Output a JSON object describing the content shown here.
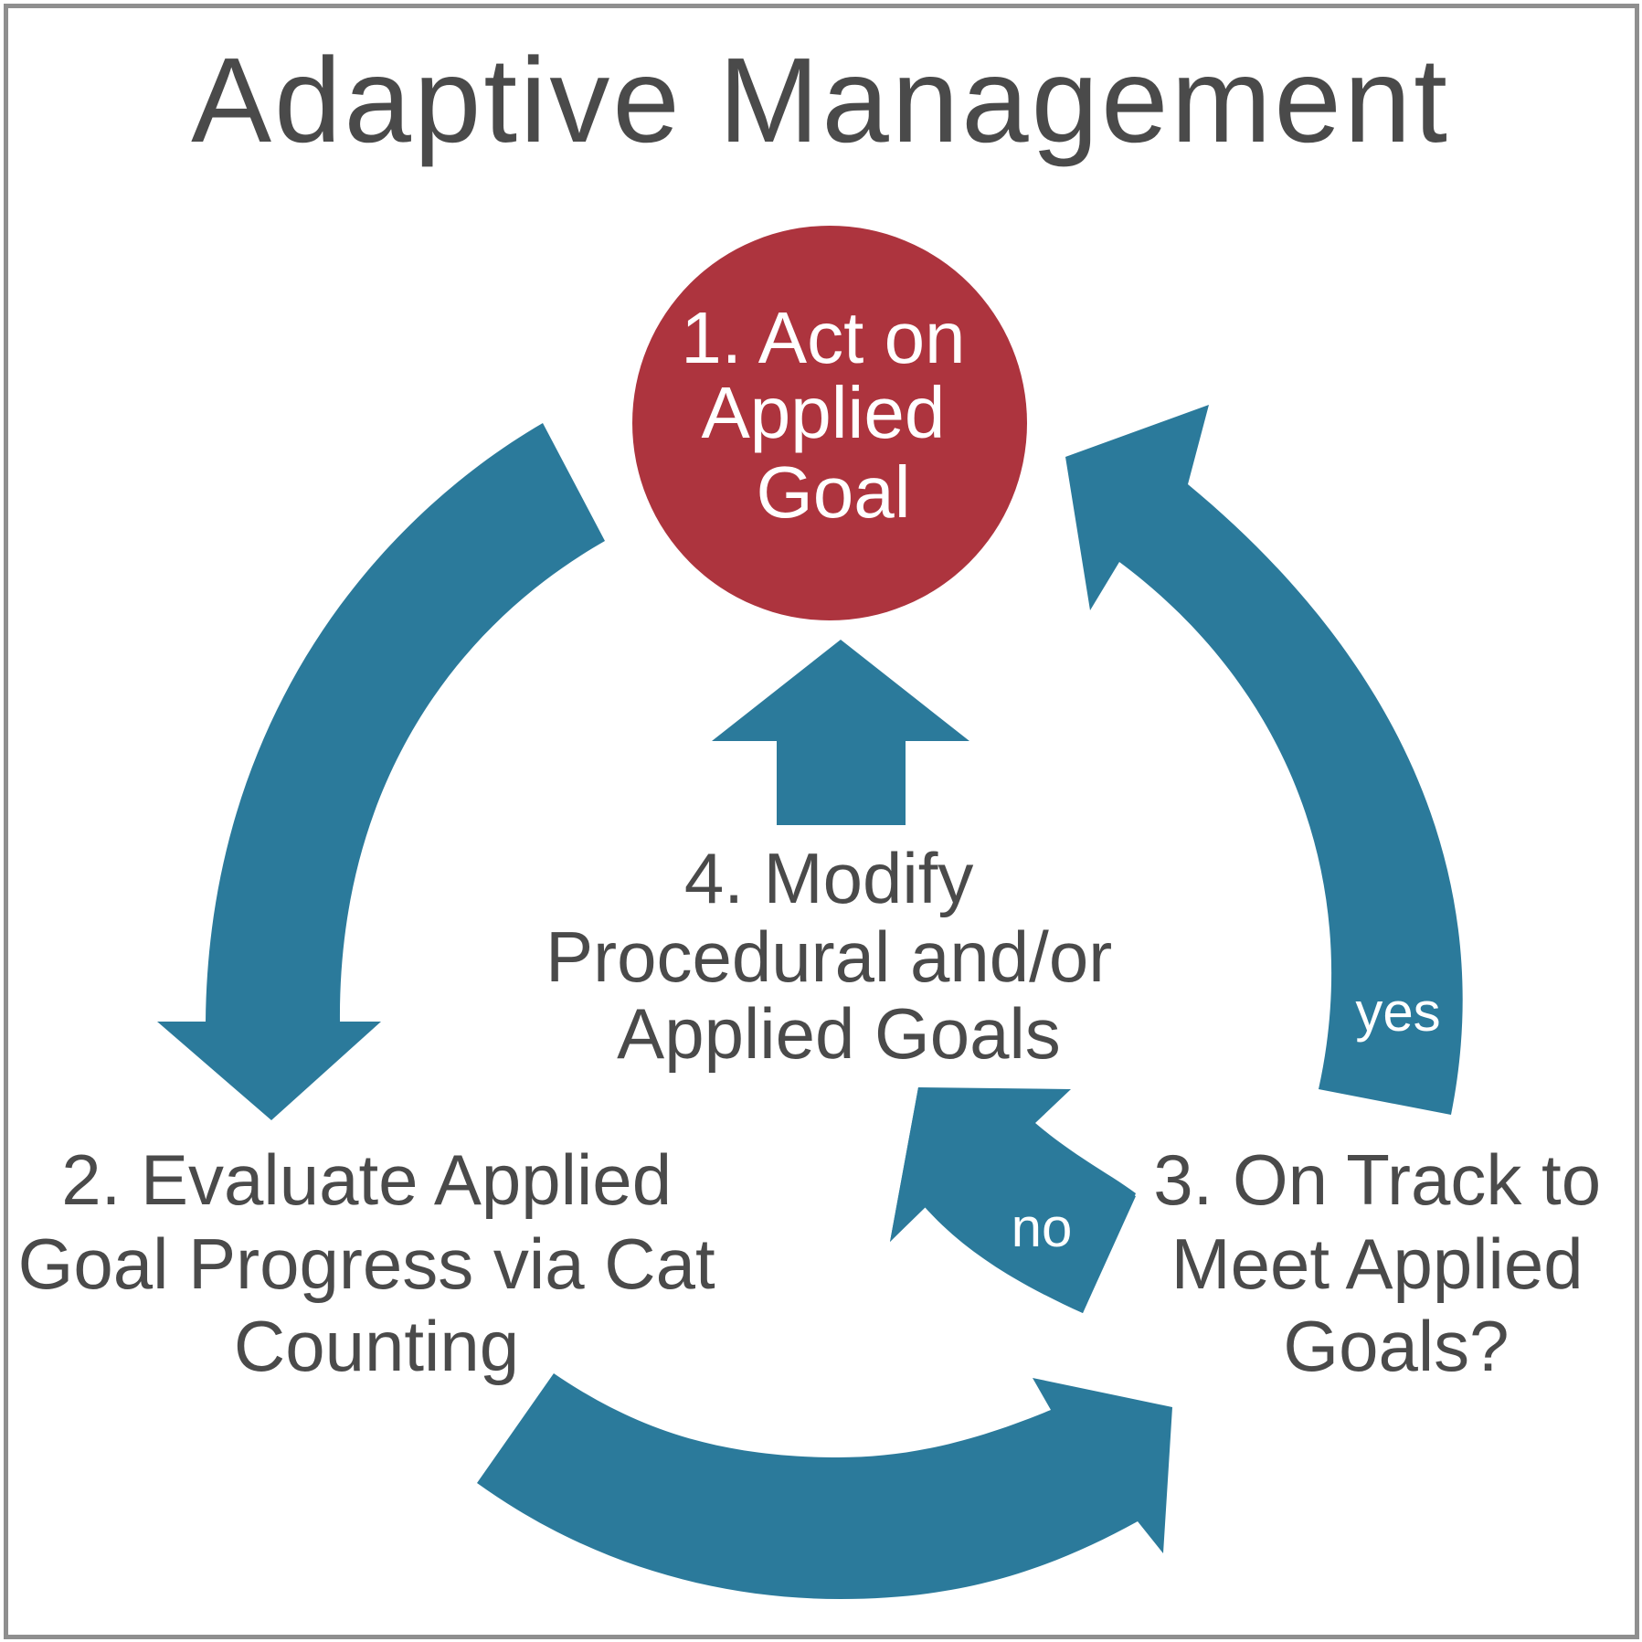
{
  "title": "Adaptive Management",
  "colors": {
    "arrow": "#2b7a9b",
    "circle": "#ad343e",
    "text": "#4a4a4a",
    "border": "#8f8f8f"
  },
  "steps": {
    "step1": [
      "1. Act on",
      "Applied",
      "Goal"
    ],
    "step2": [
      "2. Evaluate Applied",
      "Goal Progress via Cat",
      "Counting"
    ],
    "step3": [
      "3. On Track to",
      "Meet Applied",
      "Goals?"
    ],
    "step4": [
      "4. Modify",
      "Procedural and/or",
      "Applied Goals"
    ]
  },
  "branches": {
    "yes": "yes",
    "no": "no"
  }
}
